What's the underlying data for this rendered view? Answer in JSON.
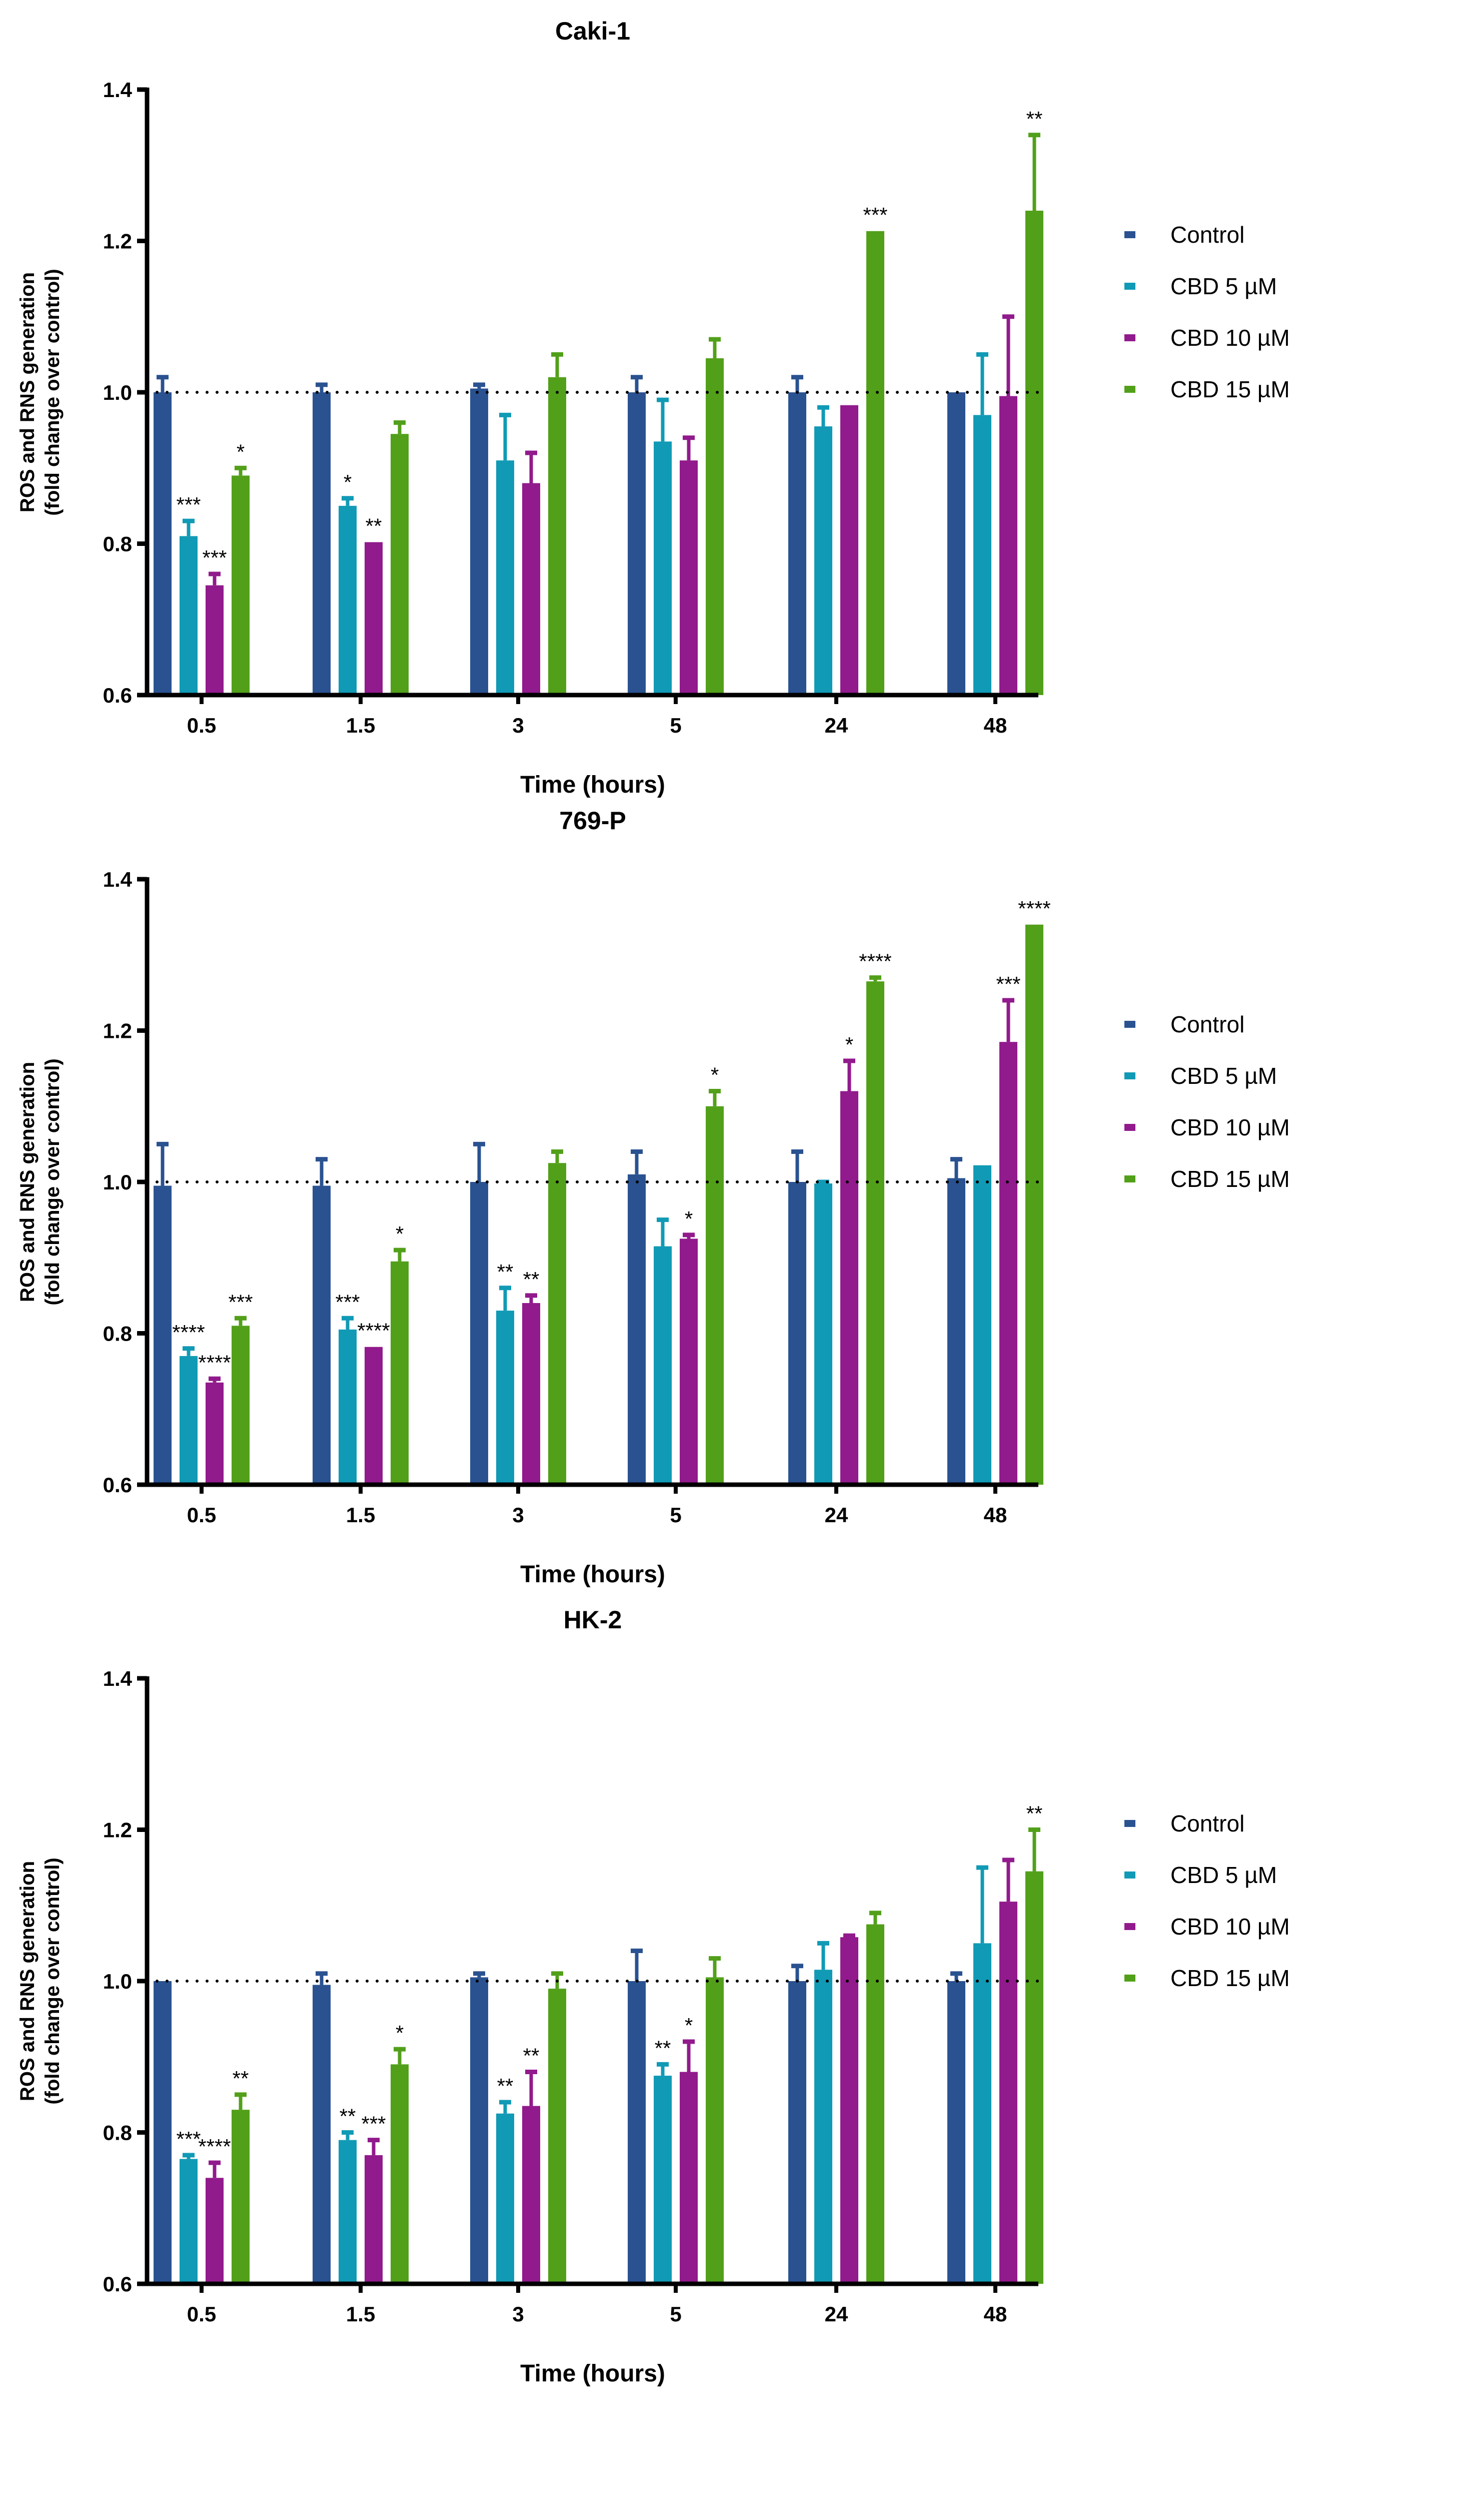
{
  "chart_data": {
    "type": "bar",
    "categories": [
      "0.5",
      "1.5",
      "3",
      "5",
      "24",
      "48"
    ],
    "xlabel": "Time (hours)",
    "ylabel": [
      "ROS and RNS generation",
      "(fold change over control)"
    ],
    "ylim": [
      0.6,
      1.4
    ],
    "yticks": [
      "0.6",
      "0.8",
      "1.0",
      "1.2",
      "1.4"
    ],
    "reference_line": 1.0,
    "legend": [
      {
        "name": "Control",
        "color": "#2a5291"
      },
      {
        "name": "CBD 5 µM",
        "color": "#119ab5"
      },
      {
        "name": "CBD 10 µM",
        "color": "#911a8c"
      },
      {
        "name": "CBD 15 µM",
        "color": "#52a01a"
      }
    ],
    "legend_position": "right",
    "panels": [
      {
        "title": "Caki-1",
        "series": [
          {
            "name": "Control",
            "values": [
              1.0,
              1.0,
              1.005,
              1.0,
              1.0,
              1.0
            ],
            "err_top": [
              1.02,
              1.01,
              1.01,
              1.02,
              1.02,
              1.0
            ],
            "sig": [
              "",
              "",
              "",
              "",
              "",
              ""
            ]
          },
          {
            "name": "CBD 5 µM",
            "values": [
              0.81,
              0.85,
              0.91,
              0.935,
              0.955,
              0.97
            ],
            "err_top": [
              0.83,
              0.86,
              0.97,
              0.99,
              0.98,
              1.05
            ],
            "sig": [
              "***",
              "*",
              "",
              "",
              "",
              ""
            ]
          },
          {
            "name": "CBD 10 µM",
            "values": [
              0.745,
              0.802,
              0.88,
              0.91,
              0.983,
              0.995
            ],
            "err_top": [
              0.76,
              0.802,
              0.92,
              0.94,
              0.983,
              1.1
            ],
            "sig": [
              "***",
              "**",
              "",
              "",
              "",
              ""
            ]
          },
          {
            "name": "CBD 15 µM",
            "values": [
              0.89,
              0.945,
              1.02,
              1.045,
              1.213,
              1.24
            ],
            "err_top": [
              0.9,
              0.96,
              1.05,
              1.07,
              1.213,
              1.34
            ],
            "sig": [
              "*",
              "",
              "",
              "",
              "***",
              "**"
            ]
          }
        ]
      },
      {
        "title": "769-P",
        "series": [
          {
            "name": "Control",
            "values": [
              0.995,
              0.995,
              1.0,
              1.01,
              1.0,
              1.005
            ],
            "err_top": [
              1.05,
              1.03,
              1.05,
              1.04,
              1.04,
              1.03
            ],
            "sig": [
              "",
              "",
              "",
              "",
              "",
              ""
            ]
          },
          {
            "name": "CBD 5 µM",
            "values": [
              0.77,
              0.805,
              0.83,
              0.915,
              0.998,
              1.022
            ],
            "err_top": [
              0.78,
              0.82,
              0.86,
              0.95,
              1.0,
              1.022
            ],
            "sig": [
              "****",
              "***",
              "**",
              "",
              "",
              ""
            ]
          },
          {
            "name": "CBD 10 µM",
            "values": [
              0.735,
              0.782,
              0.84,
              0.925,
              1.12,
              1.185
            ],
            "err_top": [
              0.74,
              0.782,
              0.85,
              0.93,
              1.16,
              1.24
            ],
            "sig": [
              "****",
              "****",
              "**",
              "*",
              "*",
              "***"
            ]
          },
          {
            "name": "CBD 15 µM",
            "values": [
              0.81,
              0.895,
              1.025,
              1.1,
              1.265,
              1.34
            ],
            "err_top": [
              0.82,
              0.91,
              1.04,
              1.12,
              1.27,
              1.34
            ],
            "sig": [
              "***",
              "*",
              "",
              "*",
              "****",
              "****"
            ]
          }
        ]
      },
      {
        "title": "HK-2",
        "series": [
          {
            "name": "Control",
            "values": [
              1.0,
              0.995,
              1.005,
              1.0,
              1.0,
              1.0
            ],
            "err_top": [
              1.0,
              1.01,
              1.01,
              1.04,
              1.02,
              1.01
            ],
            "sig": [
              "",
              "",
              "",
              "",
              "",
              ""
            ]
          },
          {
            "name": "CBD 5 µM",
            "values": [
              0.765,
              0.79,
              0.825,
              0.875,
              1.015,
              1.05
            ],
            "err_top": [
              0.77,
              0.8,
              0.84,
              0.89,
              1.05,
              1.15
            ],
            "sig": [
              "***",
              "**",
              "**",
              "**",
              "",
              ""
            ]
          },
          {
            "name": "CBD 10 µM",
            "values": [
              0.74,
              0.77,
              0.835,
              0.88,
              1.058,
              1.105
            ],
            "err_top": [
              0.76,
              0.79,
              0.88,
              0.92,
              1.06,
              1.16
            ],
            "sig": [
              "****",
              "***",
              "**",
              "*",
              "",
              ""
            ]
          },
          {
            "name": "CBD 15 µM",
            "values": [
              0.83,
              0.89,
              0.99,
              1.005,
              1.075,
              1.145
            ],
            "err_top": [
              0.85,
              0.91,
              1.01,
              1.03,
              1.09,
              1.2
            ],
            "sig": [
              "**",
              "*",
              "",
              "",
              "",
              "**"
            ]
          }
        ]
      }
    ]
  }
}
